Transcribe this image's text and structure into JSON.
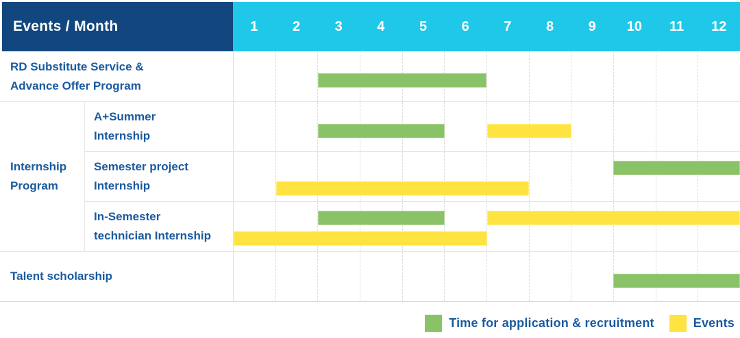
{
  "table": {
    "group_label": "Internship\nProgram"
  },
  "colors": {
    "header_navy": "#11477E",
    "header_cyan": "#1FC8E8",
    "label_text": "#1A5A9E",
    "recruitment_green": "#8AC268",
    "event_yellow": "#FFE340"
  },
  "chart_data": {
    "type": "gantt",
    "title": "Events / Month",
    "x": {
      "unit": "month",
      "ticks": [
        "1",
        "2",
        "3",
        "4",
        "5",
        "6",
        "7",
        "8",
        "9",
        "10",
        "11",
        "12"
      ],
      "range": [
        1,
        12
      ]
    },
    "grid": "dashed-vertical-month-lines",
    "legend_position": "bottom-right",
    "legend": [
      {
        "name": "Time for application & recruitment",
        "color": "#8AC268"
      },
      {
        "name": "Events",
        "color": "#FFE340"
      }
    ],
    "rows": [
      {
        "label": "RD Substitute Service &\nAdvance Offer Program",
        "group": null,
        "bars": [
          {
            "series": "Time for application & recruitment",
            "start_month": 3,
            "end_month": 6,
            "track": "single"
          }
        ]
      },
      {
        "label": "A+Summer\nInternship",
        "group": "Internship Program",
        "bars": [
          {
            "series": "Time for application & recruitment",
            "start_month": 3,
            "end_month": 5,
            "track": "single"
          },
          {
            "series": "Events",
            "start_month": 7,
            "end_month": 8,
            "track": "single"
          }
        ]
      },
      {
        "label": "Semester project\nInternship",
        "group": "Internship Program",
        "bars": [
          {
            "series": "Time for application & recruitment",
            "start_month": 10,
            "end_month": 12,
            "track": "top"
          },
          {
            "series": "Events",
            "start_month": 2,
            "end_month": 7,
            "track": "bottom"
          }
        ]
      },
      {
        "label": "In-Semester\ntechnician Internship",
        "group": "Internship Program",
        "bars": [
          {
            "series": "Time for application & recruitment",
            "start_month": 3,
            "end_month": 5,
            "track": "top"
          },
          {
            "series": "Events",
            "start_month": 7,
            "end_month": 12,
            "track": "top"
          },
          {
            "series": "Events",
            "start_month": 1,
            "end_month": 6,
            "track": "bottom"
          }
        ]
      },
      {
        "label": "Talent scholarship",
        "group": null,
        "bars": [
          {
            "series": "Time for application & recruitment",
            "start_month": 10,
            "end_month": 12,
            "track": "single"
          }
        ]
      }
    ]
  }
}
